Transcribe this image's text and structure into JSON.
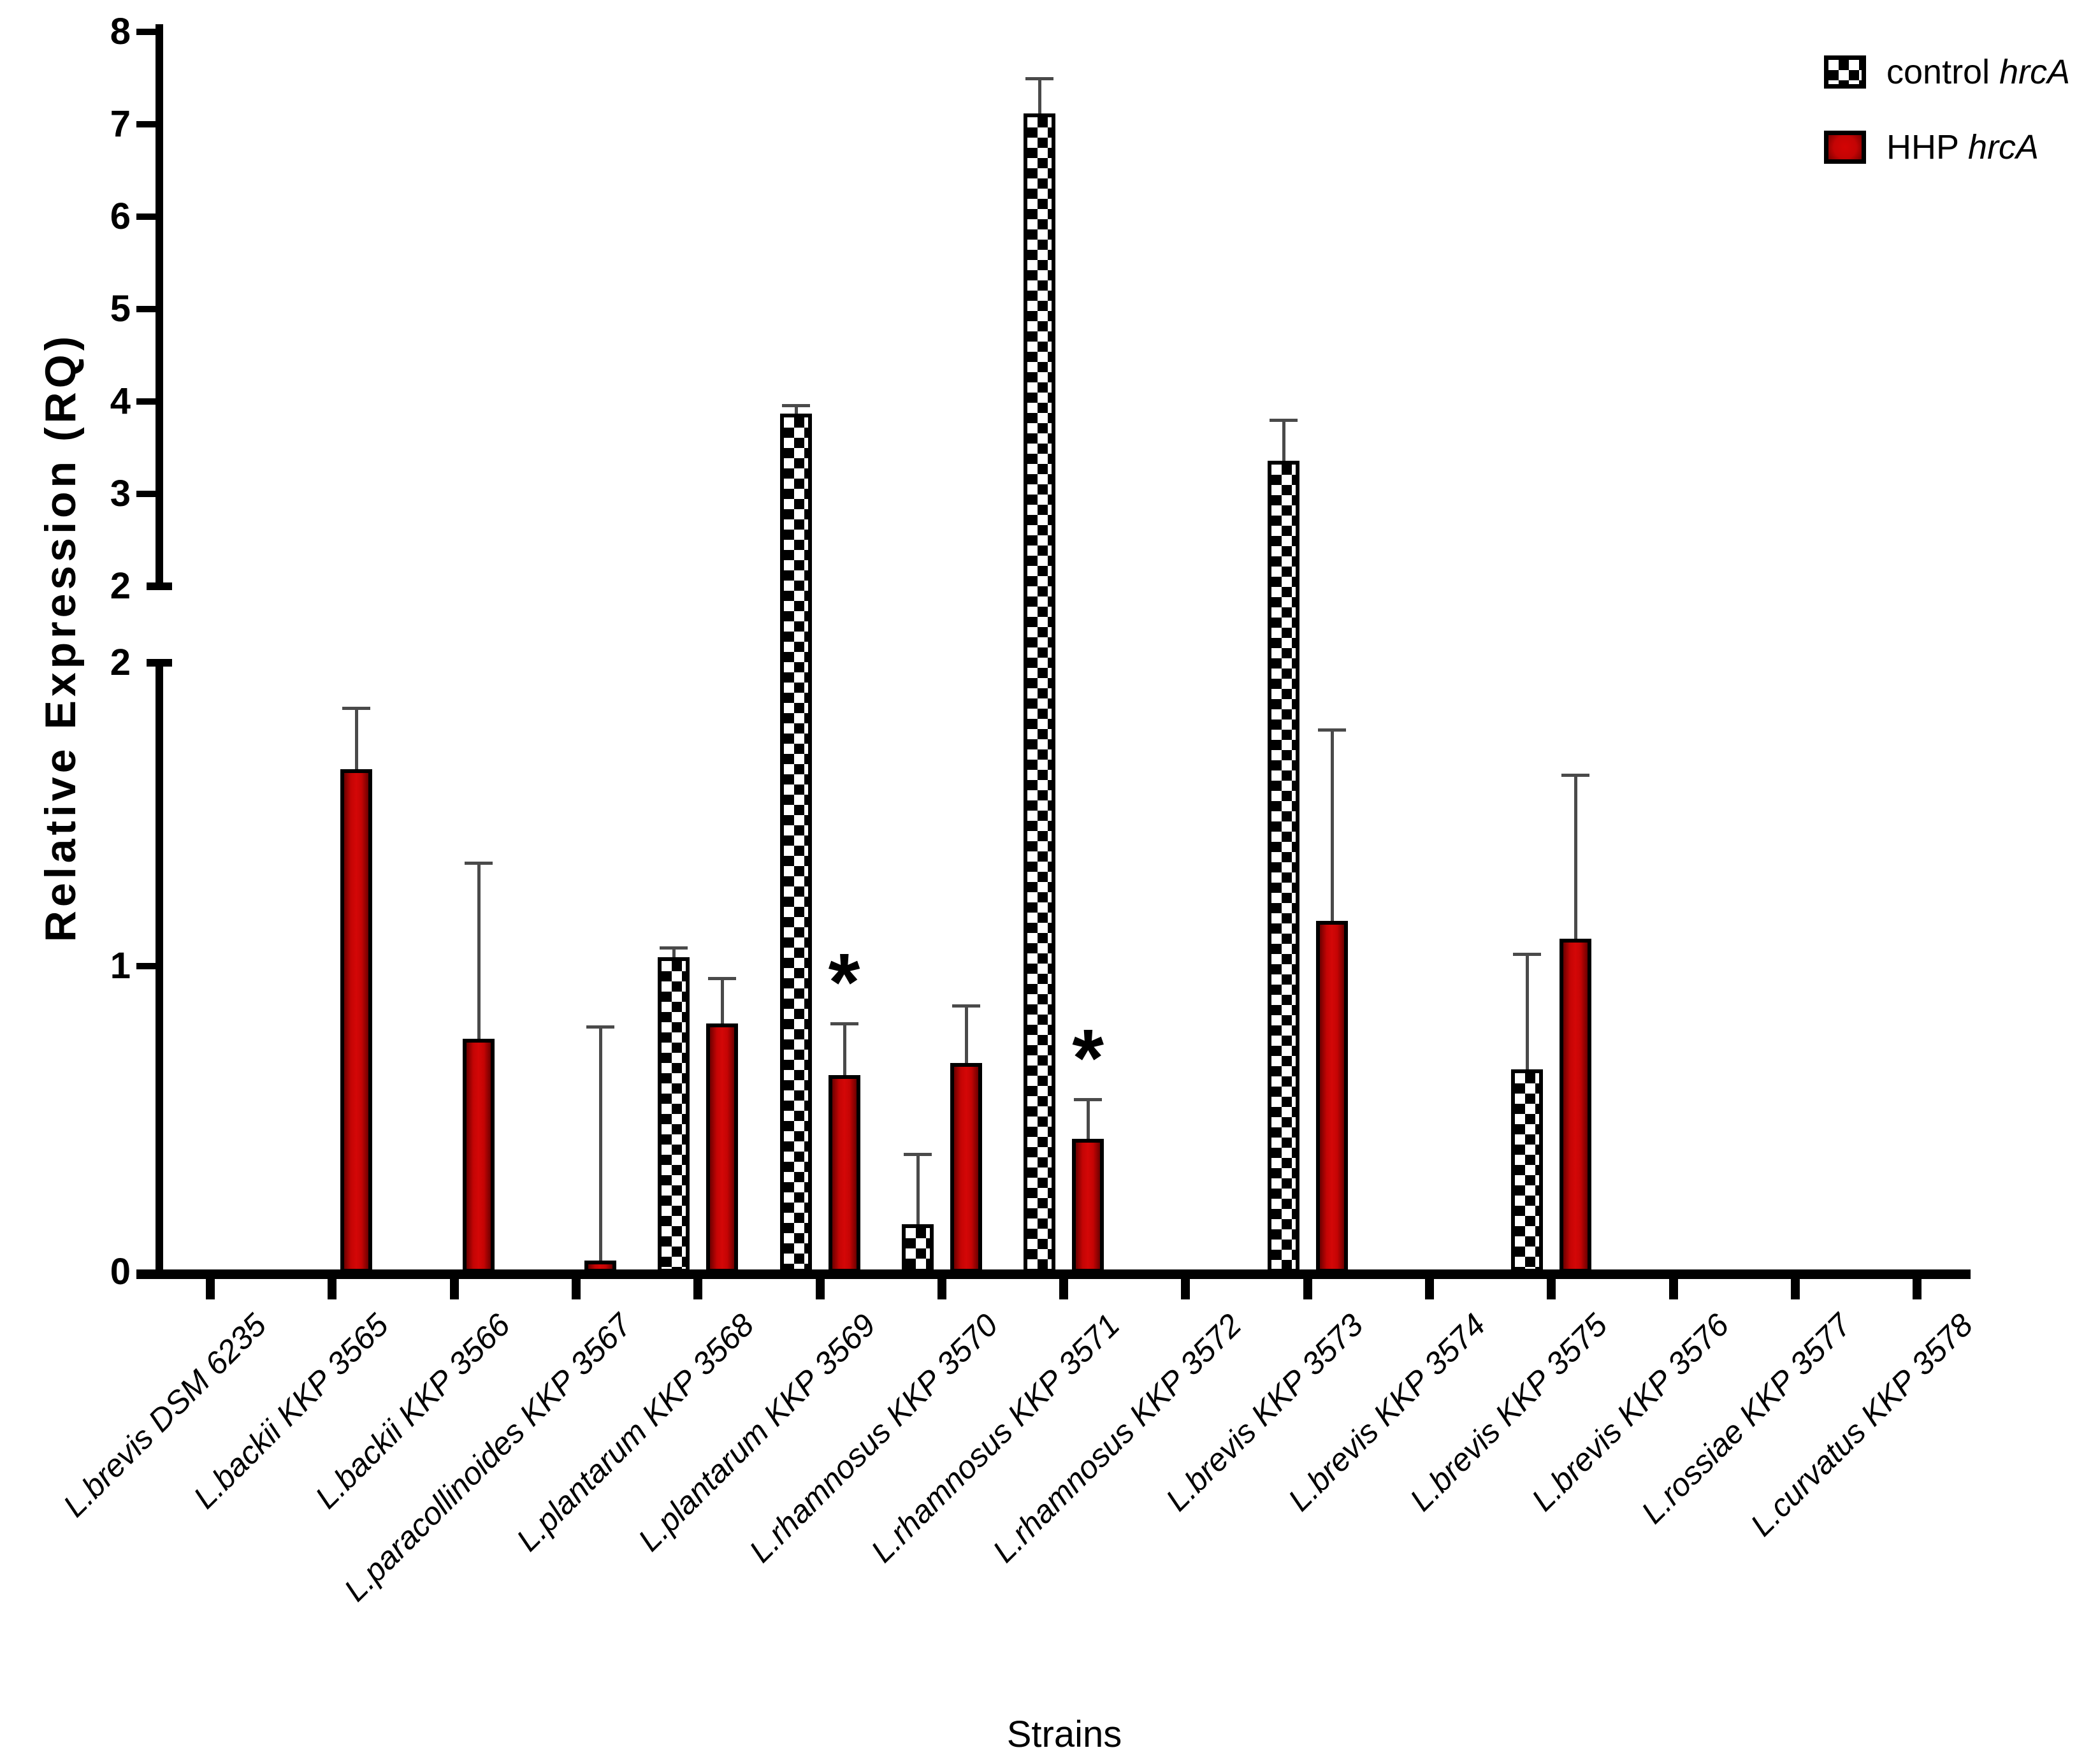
{
  "y_axis": {
    "title": "Relative Expression (RQ)",
    "upper_segment": {
      "range": [
        2,
        8
      ],
      "ticks": [
        8,
        7,
        6,
        5,
        4,
        3,
        2
      ]
    },
    "lower_segment": {
      "range": [
        0,
        2
      ],
      "ticks": [
        2,
        1,
        0
      ]
    }
  },
  "x_axis": {
    "title": "Strains"
  },
  "legend": {
    "entries": [
      {
        "prefix": "control ",
        "gene": "hrcA",
        "swatch": "checkerboard"
      },
      {
        "prefix": "HHP ",
        "gene": "hrcA",
        "swatch": "solid",
        "color": "#c00000"
      }
    ]
  },
  "colors": {
    "hhp_bar": "#c00000",
    "bar_border": "#000000",
    "error_bar": "#4a4a4a",
    "background": "#ffffff"
  },
  "chart_data": {
    "type": "bar",
    "title": "",
    "xlabel": "Strains",
    "ylabel": "Relative Expression (RQ)",
    "grid": false,
    "legend_position": "top-right",
    "axis_break": {
      "lower_range": [
        0,
        2
      ],
      "lower_ticks": [
        0,
        1,
        2
      ],
      "upper_range": [
        2,
        8
      ],
      "upper_ticks": [
        2,
        3,
        4,
        5,
        6,
        7,
        8
      ]
    },
    "categories": [
      "L.brevis DSM 6235",
      "L.backii KKP 3565",
      "L.backii KKP 3566",
      "L.paracollinoides KKP 3567",
      "L.plantarum KKP 3568",
      "L.plantarum KKP 3569",
      "L.rhamnosus KKP 3570",
      "L.rhamnosus KKP 3571",
      "L.rhamnosus KKP 3572",
      "L.brevis KKP 3573",
      "L.brevis KKP 3574",
      "L.brevis KKP 3575",
      "L.brevis KKP 3576",
      "L.rossiae KKP 3577",
      "L.curvatus KKP 3578"
    ],
    "series": [
      {
        "name": "control hrcA",
        "pattern": "checkerboard",
        "values": [
          null,
          null,
          null,
          null,
          1.03,
          3.87,
          0.15,
          7.12,
          null,
          3.36,
          null,
          0.66,
          null,
          null,
          null
        ],
        "error_top": [
          null,
          null,
          null,
          null,
          1.06,
          3.96,
          0.38,
          7.5,
          null,
          3.8,
          null,
          1.04,
          null,
          null,
          null
        ]
      },
      {
        "name": "HHP hrcA",
        "color": "#c00000",
        "values": [
          null,
          1.65,
          0.76,
          0.03,
          0.81,
          0.64,
          0.68,
          0.43,
          null,
          1.15,
          null,
          1.09,
          null,
          null,
          null
        ],
        "error_top": [
          null,
          1.85,
          1.34,
          0.8,
          0.96,
          0.81,
          0.87,
          0.56,
          null,
          1.78,
          null,
          1.63,
          null,
          null,
          null
        ]
      }
    ],
    "significance": [
      {
        "category": "L.plantarum KKP 3569",
        "series": "HHP hrcA",
        "marker": "*"
      },
      {
        "category": "L.rhamnosus KKP 3571",
        "series": "HHP hrcA",
        "marker": "*"
      }
    ]
  }
}
